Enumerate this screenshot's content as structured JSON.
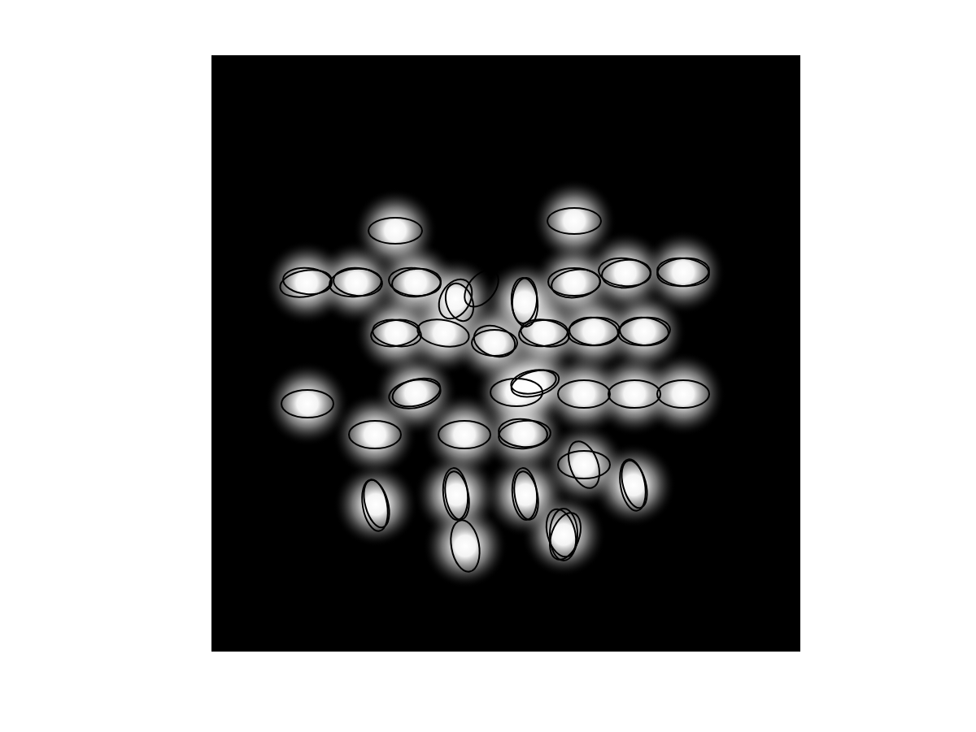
{
  "chart_data": {
    "type": "image",
    "tick_labels": false,
    "color": "#000000",
    "xlim": [
      0,
      724
    ],
    "ylim": [
      0,
      734
    ],
    "blobs": {
      "x": [
        226,
        446,
        117,
        178,
        251,
        300,
        385,
        446,
        509,
        580,
        227,
        286,
        348,
        409,
        470,
        532,
        118,
        251,
        375,
        398,
        458,
        520,
        580,
        201,
        311,
        384,
        202,
        301,
        386,
        458,
        519,
        312,
        433
      ],
      "y": [
        216,
        204,
        280,
        280,
        280,
        300,
        304,
        280,
        268,
        267,
        342,
        342,
        354,
        342,
        340,
        340,
        429,
        416,
        415,
        404,
        417,
        417,
        417,
        467,
        467,
        466,
        553,
        541,
        541,
        504,
        529,
        604,
        590
      ]
    },
    "ellipses": {
      "x": [
        226,
        446,
        116,
        118,
        177,
        180,
        250,
        252,
        300,
        305,
        332,
        385,
        385,
        446,
        448,
        508,
        510,
        580,
        580,
        226,
        228,
        285,
        348,
        348,
        408,
        410,
        470,
        470,
        532,
        532,
        118,
        250,
        252,
        375,
        398,
        396,
        458,
        520,
        580,
        201,
        311,
        385,
        383,
        201,
        203,
        300,
        302,
        385,
        387,
        458,
        458,
        518,
        520,
        312,
        433,
        435,
        430
      ],
      "y": [
        216,
        204,
        281,
        278,
        280,
        279,
        279,
        280,
        300,
        304,
        287,
        304,
        302,
        279,
        281,
        267,
        269,
        267,
        267,
        342,
        342,
        342,
        354,
        352,
        342,
        342,
        340,
        340,
        340,
        340,
        429,
        417,
        415,
        415,
        404,
        402,
        417,
        417,
        417,
        467,
        467,
        467,
        465,
        554,
        552,
        540,
        542,
        540,
        542,
        504,
        504,
        529,
        528,
        604,
        590,
        592,
        588
      ],
      "rx": [
        33,
        33,
        32,
        30,
        32,
        30,
        32,
        30,
        18,
        16,
        16,
        16,
        15,
        32,
        30,
        32,
        30,
        32,
        32,
        30,
        30,
        32,
        28,
        26,
        30,
        30,
        32,
        30,
        32,
        30,
        32,
        32,
        30,
        32,
        30,
        28,
        32,
        32,
        32,
        32,
        32,
        32,
        30,
        15,
        14,
        15,
        14,
        15,
        14,
        32,
        17,
        15,
        14,
        17,
        17,
        17,
        17
      ],
      "ry": [
        16,
        16,
        16,
        16,
        17,
        17,
        17,
        17,
        26,
        24,
        26,
        30,
        28,
        17,
        17,
        17,
        17,
        17,
        17,
        16,
        16,
        16,
        16,
        18,
        16,
        16,
        17,
        17,
        17,
        17,
        17,
        17,
        16,
        17,
        15,
        14,
        17,
        17,
        17,
        17,
        17,
        17,
        17,
        32,
        30,
        32,
        30,
        32,
        30,
        17,
        30,
        32,
        30,
        32,
        32,
        30,
        30
      ],
      "angle": [
        0,
        0,
        -10,
        5,
        -5,
        5,
        5,
        -5,
        30,
        -20,
        40,
        -5,
        5,
        0,
        -8,
        5,
        -5,
        -5,
        5,
        -8,
        8,
        10,
        0,
        20,
        -5,
        10,
        -5,
        5,
        -5,
        5,
        0,
        -10,
        -15,
        0,
        -15,
        -10,
        0,
        0,
        0,
        0,
        0,
        -5,
        5,
        -10,
        -15,
        -5,
        -10,
        -5,
        -10,
        0,
        -20,
        -10,
        -15,
        -10,
        0,
        20,
        -15
      ]
    }
  }
}
